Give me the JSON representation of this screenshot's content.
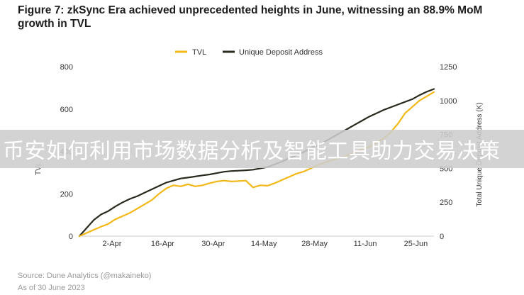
{
  "title": "Figure 7: zkSync Era achieved unprecedented heights in June, witnessing an 88.9% MoM growth in TVL",
  "overlay_text": "币安如何利用市场数据分析及智能工具助力交易决策",
  "source": "Source: Dune Analytics (@makaineko)",
  "as_of": "As of 30 June 2023",
  "chart_data": {
    "type": "line",
    "x_tick_labels": [
      "2-Apr",
      "16-Apr",
      "30-Apr",
      "14-May",
      "28-May",
      "11-Jun",
      "25-Jun"
    ],
    "x_range": [
      "2023-03-24",
      "2023-06-30"
    ],
    "x_ticks": [
      "2023-04-02",
      "2023-04-16",
      "2023-04-30",
      "2023-05-14",
      "2023-05-28",
      "2023-06-11",
      "2023-06-25"
    ],
    "left_axis": {
      "label": "TVL",
      "ylim": [
        0,
        800
      ],
      "ticks": [
        0,
        200,
        400,
        600,
        800
      ]
    },
    "right_axis": {
      "label": "Total Unique Deposit Address (K)",
      "ylim": [
        0,
        1250
      ],
      "ticks": [
        0,
        250,
        500,
        750,
        1000,
        1250
      ]
    },
    "legend_position": "top-center",
    "grid": false,
    "series": [
      {
        "name": "TVL",
        "axis": "left",
        "color": "#f2b817",
        "points": [
          [
            "2023-03-24",
            0
          ],
          [
            "2023-03-26",
            15
          ],
          [
            "2023-03-28",
            30
          ],
          [
            "2023-03-30",
            45
          ],
          [
            "2023-04-01",
            58
          ],
          [
            "2023-04-03",
            80
          ],
          [
            "2023-04-05",
            95
          ],
          [
            "2023-04-07",
            110
          ],
          [
            "2023-04-09",
            130
          ],
          [
            "2023-04-11",
            150
          ],
          [
            "2023-04-13",
            170
          ],
          [
            "2023-04-15",
            200
          ],
          [
            "2023-04-17",
            225
          ],
          [
            "2023-04-19",
            240
          ],
          [
            "2023-04-21",
            235
          ],
          [
            "2023-04-23",
            245
          ],
          [
            "2023-04-25",
            235
          ],
          [
            "2023-04-27",
            240
          ],
          [
            "2023-04-29",
            250
          ],
          [
            "2023-05-01",
            258
          ],
          [
            "2023-05-03",
            262
          ],
          [
            "2023-05-05",
            258
          ],
          [
            "2023-05-07",
            260
          ],
          [
            "2023-05-09",
            262
          ],
          [
            "2023-05-11",
            230
          ],
          [
            "2023-05-13",
            240
          ],
          [
            "2023-05-15",
            238
          ],
          [
            "2023-05-17",
            250
          ],
          [
            "2023-05-19",
            265
          ],
          [
            "2023-05-21",
            280
          ],
          [
            "2023-05-23",
            295
          ],
          [
            "2023-05-25",
            305
          ],
          [
            "2023-05-27",
            320
          ],
          [
            "2023-05-29",
            335
          ],
          [
            "2023-05-31",
            348
          ],
          [
            "2023-06-02",
            360
          ],
          [
            "2023-06-04",
            370
          ],
          [
            "2023-06-06",
            380
          ],
          [
            "2023-06-08",
            395
          ],
          [
            "2023-06-10",
            410
          ],
          [
            "2023-06-12",
            420
          ],
          [
            "2023-06-14",
            440
          ],
          [
            "2023-06-16",
            460
          ],
          [
            "2023-06-18",
            490
          ],
          [
            "2023-06-20",
            530
          ],
          [
            "2023-06-22",
            580
          ],
          [
            "2023-06-24",
            610
          ],
          [
            "2023-06-26",
            640
          ],
          [
            "2023-06-28",
            660
          ],
          [
            "2023-06-30",
            680
          ]
        ]
      },
      {
        "name": "Unique Deposit Address",
        "axis": "right",
        "color": "#2b2a1f",
        "points": [
          [
            "2023-03-24",
            0
          ],
          [
            "2023-03-26",
            60
          ],
          [
            "2023-03-28",
            120
          ],
          [
            "2023-03-30",
            160
          ],
          [
            "2023-04-01",
            185
          ],
          [
            "2023-04-03",
            220
          ],
          [
            "2023-04-05",
            250
          ],
          [
            "2023-04-07",
            275
          ],
          [
            "2023-04-09",
            295
          ],
          [
            "2023-04-11",
            320
          ],
          [
            "2023-04-13",
            345
          ],
          [
            "2023-04-15",
            370
          ],
          [
            "2023-04-17",
            395
          ],
          [
            "2023-04-19",
            410
          ],
          [
            "2023-04-21",
            425
          ],
          [
            "2023-04-23",
            432
          ],
          [
            "2023-04-25",
            440
          ],
          [
            "2023-04-27",
            448
          ],
          [
            "2023-04-29",
            455
          ],
          [
            "2023-05-01",
            465
          ],
          [
            "2023-05-03",
            475
          ],
          [
            "2023-05-05",
            480
          ],
          [
            "2023-05-07",
            483
          ],
          [
            "2023-05-09",
            486
          ],
          [
            "2023-05-11",
            490
          ],
          [
            "2023-05-13",
            500
          ],
          [
            "2023-05-15",
            510
          ],
          [
            "2023-05-17",
            530
          ],
          [
            "2023-05-19",
            550
          ],
          [
            "2023-05-21",
            575
          ],
          [
            "2023-05-23",
            595
          ],
          [
            "2023-05-25",
            620
          ],
          [
            "2023-05-27",
            650
          ],
          [
            "2023-05-29",
            670
          ],
          [
            "2023-05-31",
            700
          ],
          [
            "2023-06-02",
            730
          ],
          [
            "2023-06-04",
            760
          ],
          [
            "2023-06-06",
            790
          ],
          [
            "2023-06-08",
            820
          ],
          [
            "2023-06-10",
            850
          ],
          [
            "2023-06-12",
            880
          ],
          [
            "2023-06-14",
            905
          ],
          [
            "2023-06-16",
            930
          ],
          [
            "2023-06-18",
            950
          ],
          [
            "2023-06-20",
            970
          ],
          [
            "2023-06-22",
            990
          ],
          [
            "2023-06-24",
            1010
          ],
          [
            "2023-06-26",
            1040
          ],
          [
            "2023-06-28",
            1065
          ],
          [
            "2023-06-30",
            1085
          ]
        ]
      }
    ]
  }
}
